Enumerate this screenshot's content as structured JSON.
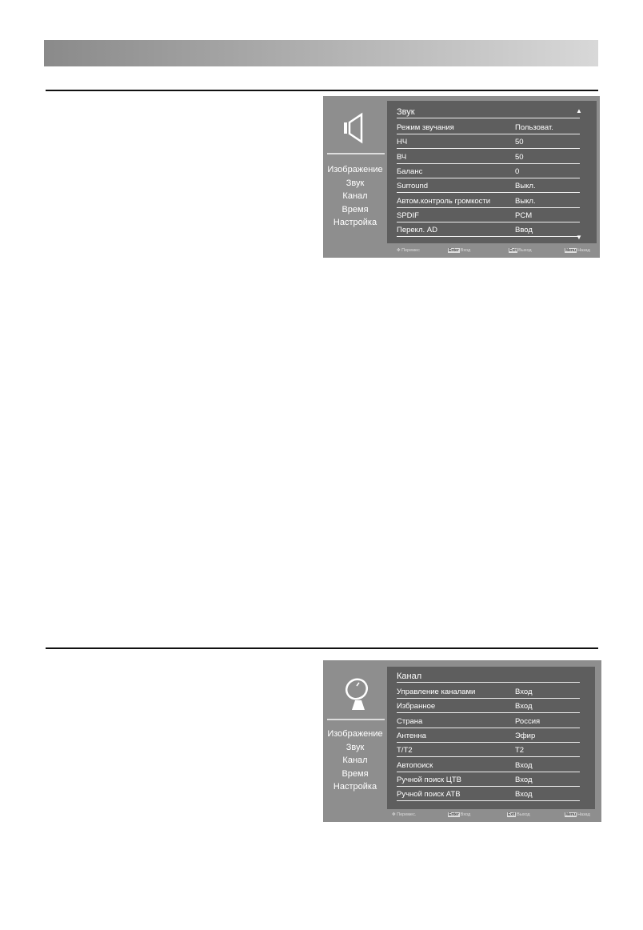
{
  "sound_menu": {
    "sidebar": [
      "Изображение",
      "Звук",
      "Канал",
      "Время",
      "Настройка"
    ],
    "title": "Звук",
    "items": [
      {
        "label": "Режим звучания",
        "value": "Пользоват."
      },
      {
        "label": "НЧ",
        "value": "50"
      },
      {
        "label": "ВЧ",
        "value": "50"
      },
      {
        "label": "Баланс",
        "value": "0"
      },
      {
        "label": "Surround",
        "value": "Выкл."
      },
      {
        "label": "Автом.контроль громкости",
        "value": "Выкл."
      },
      {
        "label": "SPDIF",
        "value": "PCM"
      },
      {
        "label": "Перекл. AD",
        "value": "Ввод"
      }
    ],
    "footer": {
      "move": "Перемес",
      "enter_key": "Enter",
      "enter": "Вход",
      "exit_key": "Exit",
      "exit": "Выход",
      "menu_key": "Menu",
      "back": "Назад"
    },
    "icon": "speaker-icon"
  },
  "channel_menu": {
    "sidebar": [
      "Изображение",
      "Звук",
      "Канал",
      "Время",
      "Настройка"
    ],
    "title": "Канал",
    "items": [
      {
        "label": "Управление каналами",
        "value": "Вход"
      },
      {
        "label": "Избранное",
        "value": "Вход"
      },
      {
        "label": "Страна",
        "value": "Россия"
      },
      {
        "label": "Антенна",
        "value": "Эфир"
      },
      {
        "label": "T/T2",
        "value": "T2"
      },
      {
        "label": "Автопоиск",
        "value": "Вход"
      },
      {
        "label": "Ручной поиск ЦТВ",
        "value": "Вход"
      },
      {
        "label": "Ручной поиск АТВ",
        "value": "Вход"
      }
    ],
    "footer": {
      "move": "Перемес.",
      "enter_key": "Enter",
      "enter": "Вход",
      "exit_key": "Exit",
      "exit": "Выход",
      "menu_key": "Menu",
      "back": "Назад"
    },
    "icon": "satellite-dish-icon"
  }
}
